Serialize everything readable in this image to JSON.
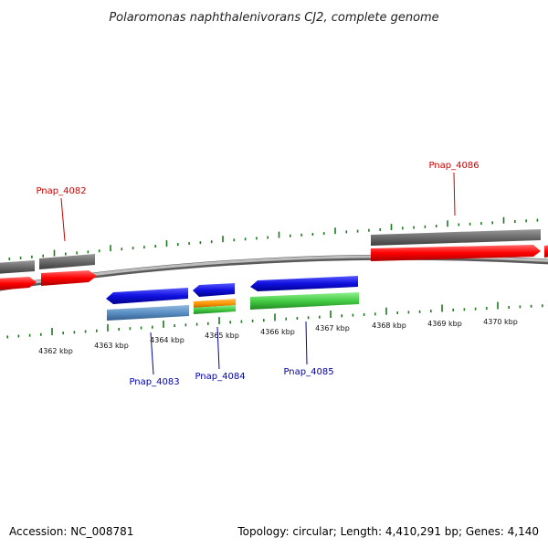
{
  "title": "Polaromonas naphthalenivorans CJ2, complete genome",
  "footer": {
    "accession": "Accession: NC_008781",
    "topology": "Topology: circular; Length: 4,410,291 bp; Genes: 4,140"
  },
  "colors": {
    "backbone": "#8a8a8a",
    "tick": "#1f7a1f",
    "forward_label": "#cc0000",
    "reverse_label": "#0000aa",
    "gene_gray": "#6e6e6e",
    "gene_red": "#ff0000",
    "gene_blue": "#1010e0",
    "gene_steel": "#5b8fc4",
    "gene_orange": "#ff9900",
    "gene_green": "#44cc44"
  },
  "kbp_labels": [
    "4362 kbp",
    "4363 kbp",
    "4364 kbp",
    "4365 kbp",
    "4366 kbp",
    "4367 kbp",
    "4368 kbp",
    "4369 kbp",
    "4370 kbp"
  ],
  "gene_labels": {
    "pnap_4082": "Pnap_4082",
    "pnap_4083": "Pnap_4083",
    "pnap_4084": "Pnap_4084",
    "pnap_4085": "Pnap_4085",
    "pnap_4086": "Pnap_4086"
  }
}
